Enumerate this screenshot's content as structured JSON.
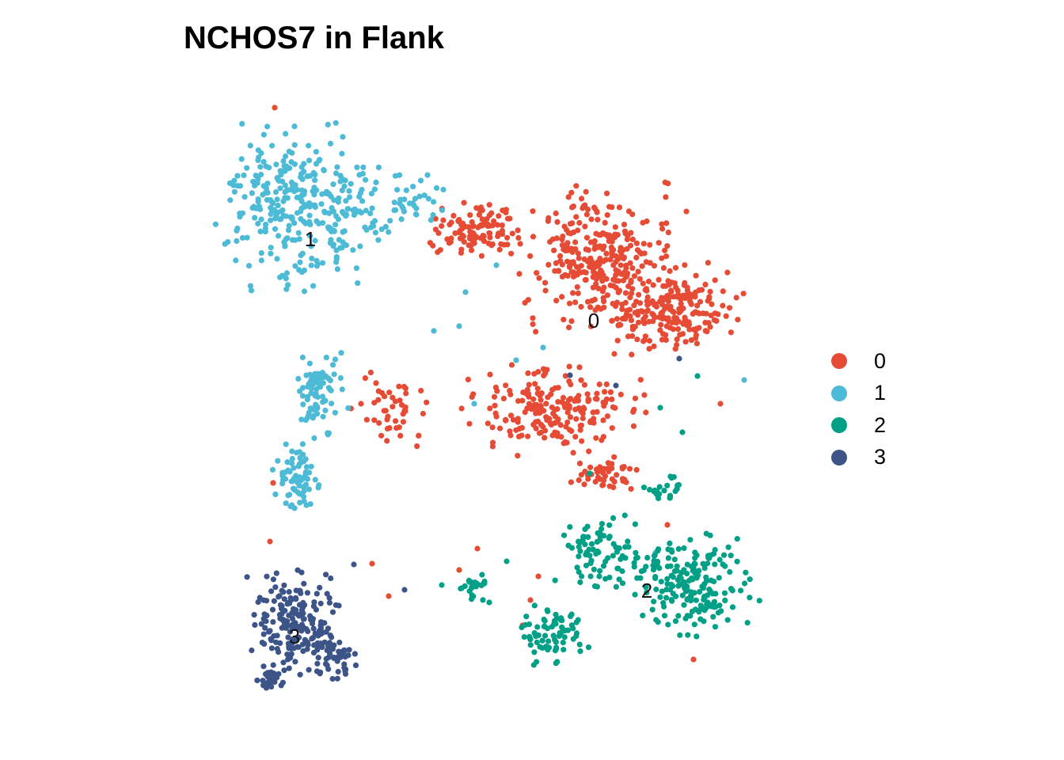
{
  "chart_data": {
    "type": "scatter",
    "title": "NCHOS7 in Flank",
    "xlabel": "",
    "ylabel": "",
    "axes_visible": false,
    "grid": false,
    "legend_position": "right",
    "series": [
      {
        "name": "0",
        "color": "#E64B35",
        "label": "0",
        "center": [
          750,
          405
        ],
        "blobs": [
          [
            760,
            330,
            110,
            100,
            0.34
          ],
          [
            850,
            390,
            95,
            60,
            0.22
          ],
          [
            700,
            520,
            120,
            60,
            0.22
          ],
          [
            600,
            290,
            60,
            40,
            0.12
          ],
          [
            500,
            520,
            60,
            50,
            0.05
          ],
          [
            760,
            600,
            50,
            25,
            0.05
          ]
        ],
        "count": 900,
        "outliers": [
          [
            347,
            136
          ],
          [
            415,
            478
          ],
          [
            345,
            610
          ],
          [
            341,
            684
          ],
          [
            491,
            753
          ],
          [
            603,
            693
          ],
          [
            580,
            720
          ],
          [
            470,
            712
          ],
          [
            680,
            728
          ],
          [
            670,
            758
          ],
          [
            660,
            790
          ],
          [
            876,
            833
          ],
          [
            843,
            663
          ],
          [
            910,
            510
          ],
          [
            456,
            510
          ]
        ]
      },
      {
        "name": "1",
        "color": "#4DBBD5",
        "label": "1",
        "center": [
          392,
          302
        ],
        "blobs": [
          [
            380,
            260,
            110,
            110,
            0.62
          ],
          [
            510,
            260,
            60,
            45,
            0.08
          ],
          [
            400,
            500,
            40,
            60,
            0.15
          ],
          [
            375,
            600,
            35,
            45,
            0.13
          ]
        ],
        "count": 520,
        "outliers": [
          [
            686,
            439
          ],
          [
            652,
            455
          ],
          [
            940,
            480
          ],
          [
            828,
            698
          ],
          [
            599,
            510
          ],
          [
            627,
            335
          ],
          [
            548,
            418
          ],
          [
            580,
            412
          ],
          [
            588,
            369
          ]
        ]
      },
      {
        "name": "2",
        "color": "#00A087",
        "label": "2",
        "center": [
          817,
          746
        ],
        "blobs": [
          [
            880,
            740,
            85,
            70,
            0.45
          ],
          [
            760,
            700,
            60,
            50,
            0.2
          ],
          [
            700,
            800,
            45,
            40,
            0.18
          ],
          [
            600,
            740,
            20,
            20,
            0.05
          ],
          [
            840,
            620,
            30,
            20,
            0.05
          ]
        ],
        "count": 420,
        "outliers": [
          [
            834,
            515
          ],
          [
            862,
            546
          ],
          [
            881,
            475
          ],
          [
            745,
            598
          ],
          [
            558,
            739
          ],
          [
            618,
            761
          ],
          [
            640,
            709
          ]
        ]
      },
      {
        "name": "3",
        "color": "#3C5488",
        "label": "3",
        "center": [
          372,
          804
        ],
        "blobs": [
          [
            370,
            785,
            60,
            70,
            0.7
          ],
          [
            420,
            830,
            30,
            35,
            0.2
          ],
          [
            340,
            860,
            20,
            15,
            0.1
          ]
        ],
        "count": 260,
        "outliers": [
          [
            720,
            474
          ],
          [
            778,
            487
          ],
          [
            858,
            453
          ],
          [
            511,
            745
          ],
          [
            447,
            713
          ]
        ]
      }
    ]
  }
}
